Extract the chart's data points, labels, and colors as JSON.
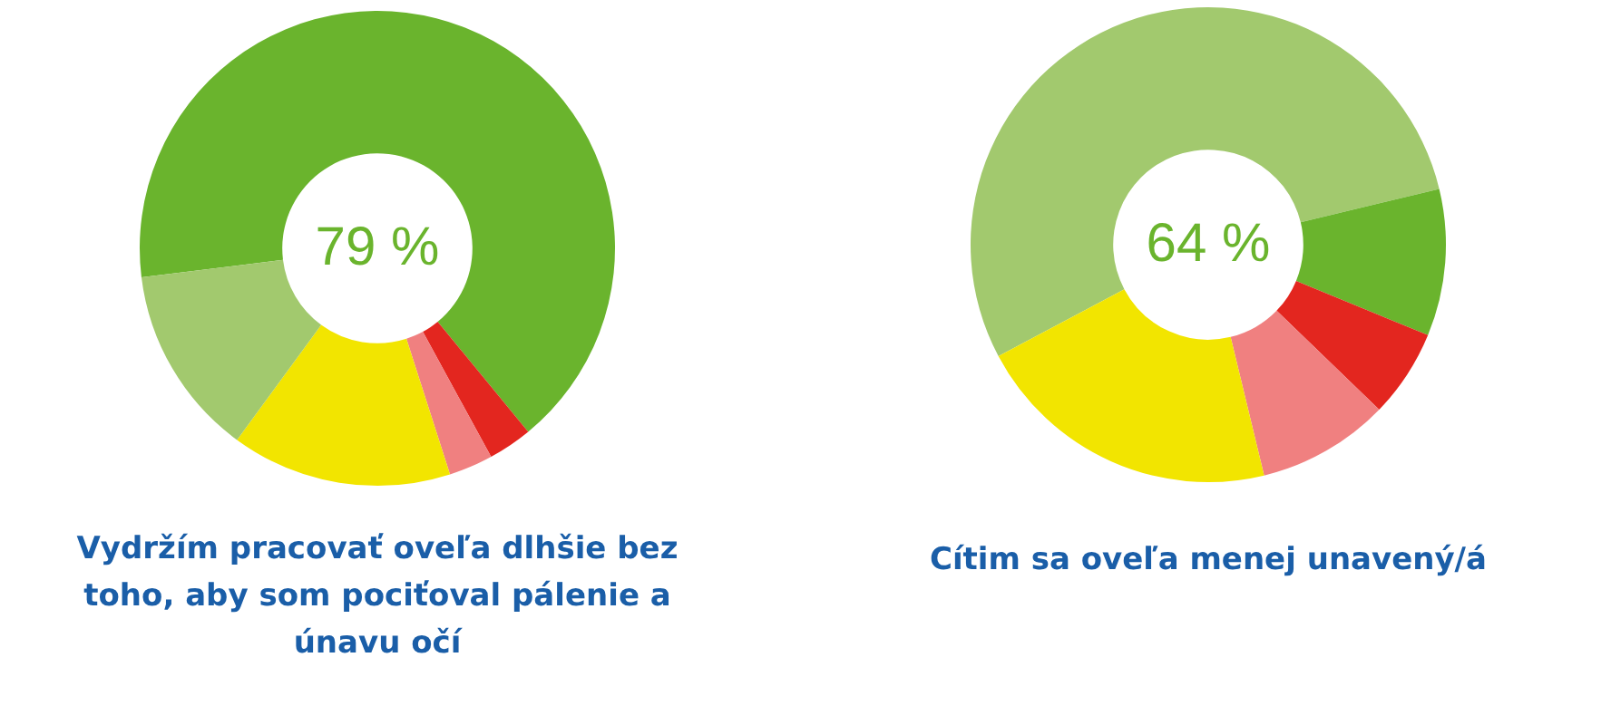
{
  "chart_data": [
    {
      "type": "donut",
      "title": "Vydržím pracovať oveľa dlhšie bez toho, aby som pociťoval pálenie a únavu očí",
      "categories": [
        null,
        null,
        null,
        null,
        null
      ],
      "values": [
        66,
        3,
        3,
        15,
        13
      ],
      "colors": [
        "#6ab42d",
        "#e3261f",
        "#f08080",
        "#f2e500",
        "#a2c96e"
      ],
      "annotations": [
        "79 %"
      ],
      "legend": false
    },
    {
      "type": "donut",
      "title": "Cítim sa oveľa menej unavený/á",
      "categories": [
        null,
        null,
        null,
        null,
        null
      ],
      "values": [
        54,
        10,
        6,
        9,
        21
      ],
      "colors": [
        "#a2c96e",
        "#6ab42d",
        "#e3261f",
        "#f08080",
        "#f2e500"
      ],
      "annotations": [
        "64 %"
      ],
      "legend": false
    }
  ]
}
